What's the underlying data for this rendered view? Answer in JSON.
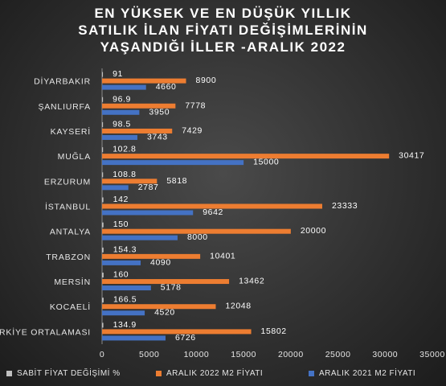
{
  "chart_data": {
    "type": "bar",
    "orientation": "horizontal",
    "title_lines": [
      "EN YÜKSEK VE EN DÜŞÜK YILLIK",
      "SATILIK İLAN FİYATI DEĞİŞİMLERİNİN",
      "YAŞANDIĞI İLLER -ARALIK 2022"
    ],
    "categories": [
      "DİYARBAKIR",
      "ŞANLIURFA",
      "KAYSERİ",
      "MUĞLA",
      "ERZURUM",
      "İSTANBUL",
      "ANTALYA",
      "TRABZON",
      "MERSİN",
      "KOCAELİ",
      "TÜRKİYE ORTALAMASI"
    ],
    "series": [
      {
        "name": "SABİT FİYAT DEĞİŞİMİ %",
        "color": "#bfbfbf",
        "values": [
          91,
          96.9,
          98.5,
          102.8,
          108.8,
          142,
          150,
          154.3,
          160,
          166.5,
          134.9
        ]
      },
      {
        "name": "ARALIK 2022 M2 FİYATI",
        "color": "#ed7d31",
        "values": [
          8900,
          7778,
          7429,
          30417,
          5818,
          23333,
          20000,
          10401,
          13462,
          12048,
          15802
        ]
      },
      {
        "name": "ARALIK 2021 M2 FİYATI",
        "color": "#4472c4",
        "values": [
          4660,
          3950,
          3743,
          15000,
          2787,
          9642,
          8000,
          4090,
          5178,
          4520,
          6726
        ]
      }
    ],
    "xlim": [
      0,
      35000
    ],
    "xticks": [
      "0",
      "5000",
      "10000",
      "15000",
      "20000",
      "25000",
      "30000",
      "35000"
    ],
    "legend_position": "bottom",
    "grid": false
  }
}
